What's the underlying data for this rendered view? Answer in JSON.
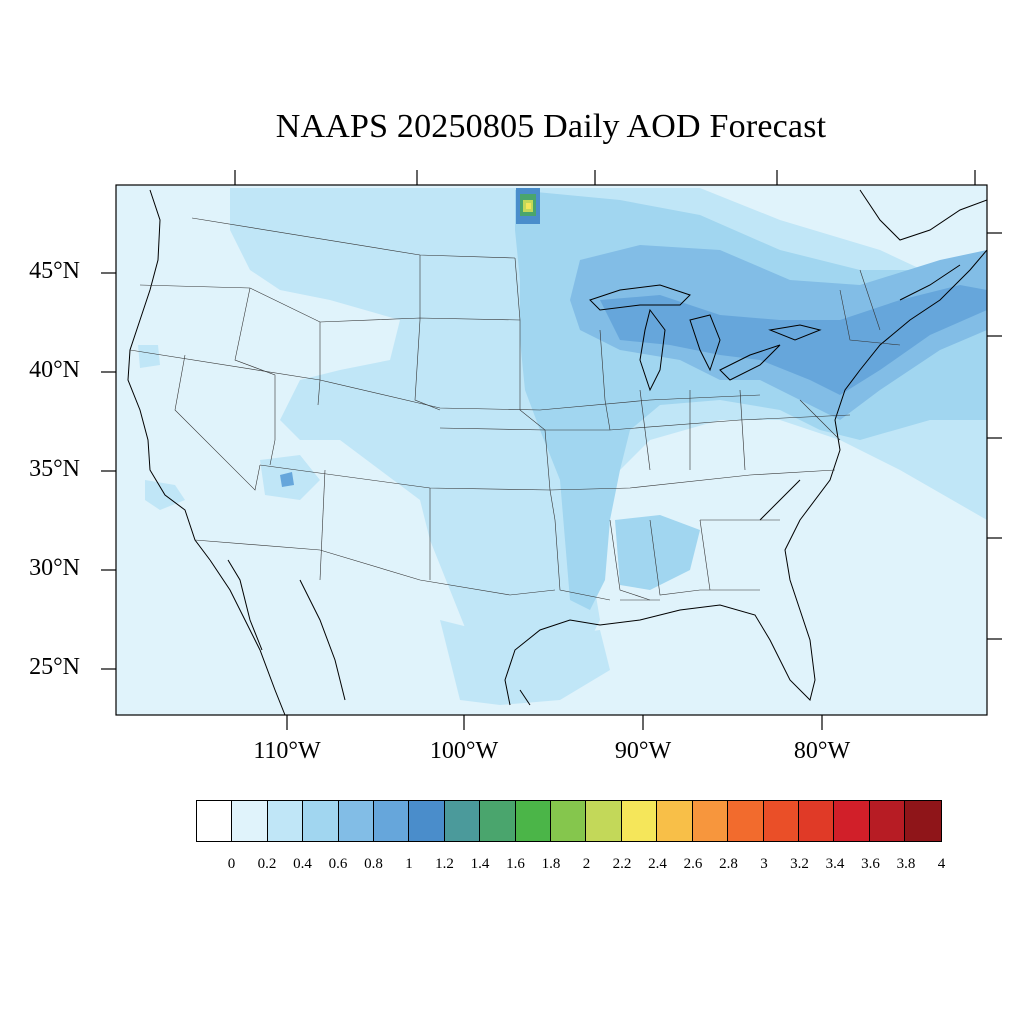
{
  "title": "NAAPS 20250805 Daily AOD Forecast",
  "latitude_labels": [
    "45°N",
    "40°N",
    "35°N",
    "30°N",
    "25°N"
  ],
  "longitude_labels": [
    "110°W",
    "100°W",
    "90°W",
    "80°W"
  ],
  "colorbar": {
    "labels": [
      "0",
      "0.2",
      "0.4",
      "0.6",
      "0.8",
      "1",
      "1.2",
      "1.4",
      "1.6",
      "1.8",
      "2",
      "2.2",
      "2.4",
      "2.6",
      "2.8",
      "3",
      "3.2",
      "3.4",
      "3.6",
      "3.8",
      "4"
    ],
    "colors": [
      "#ffffff",
      "#e0f3fb",
      "#c0e6f7",
      "#a1d6f0",
      "#82bde6",
      "#66a6db",
      "#4a8dcb",
      "#4b9a9b",
      "#4aa56d",
      "#4bb548",
      "#85c64d",
      "#c3d859",
      "#f5e65a",
      "#f8bf48",
      "#f7963d",
      "#f26b2d",
      "#ea4f28",
      "#e03a27",
      "#d11f29",
      "#b71c24",
      "#8f1519"
    ]
  },
  "map": {
    "region": "Contiguous United States",
    "projection": "cylindrical equidistant",
    "field": "aerosol optical depth (AOD)",
    "base_color": "#e0f3fb"
  }
}
